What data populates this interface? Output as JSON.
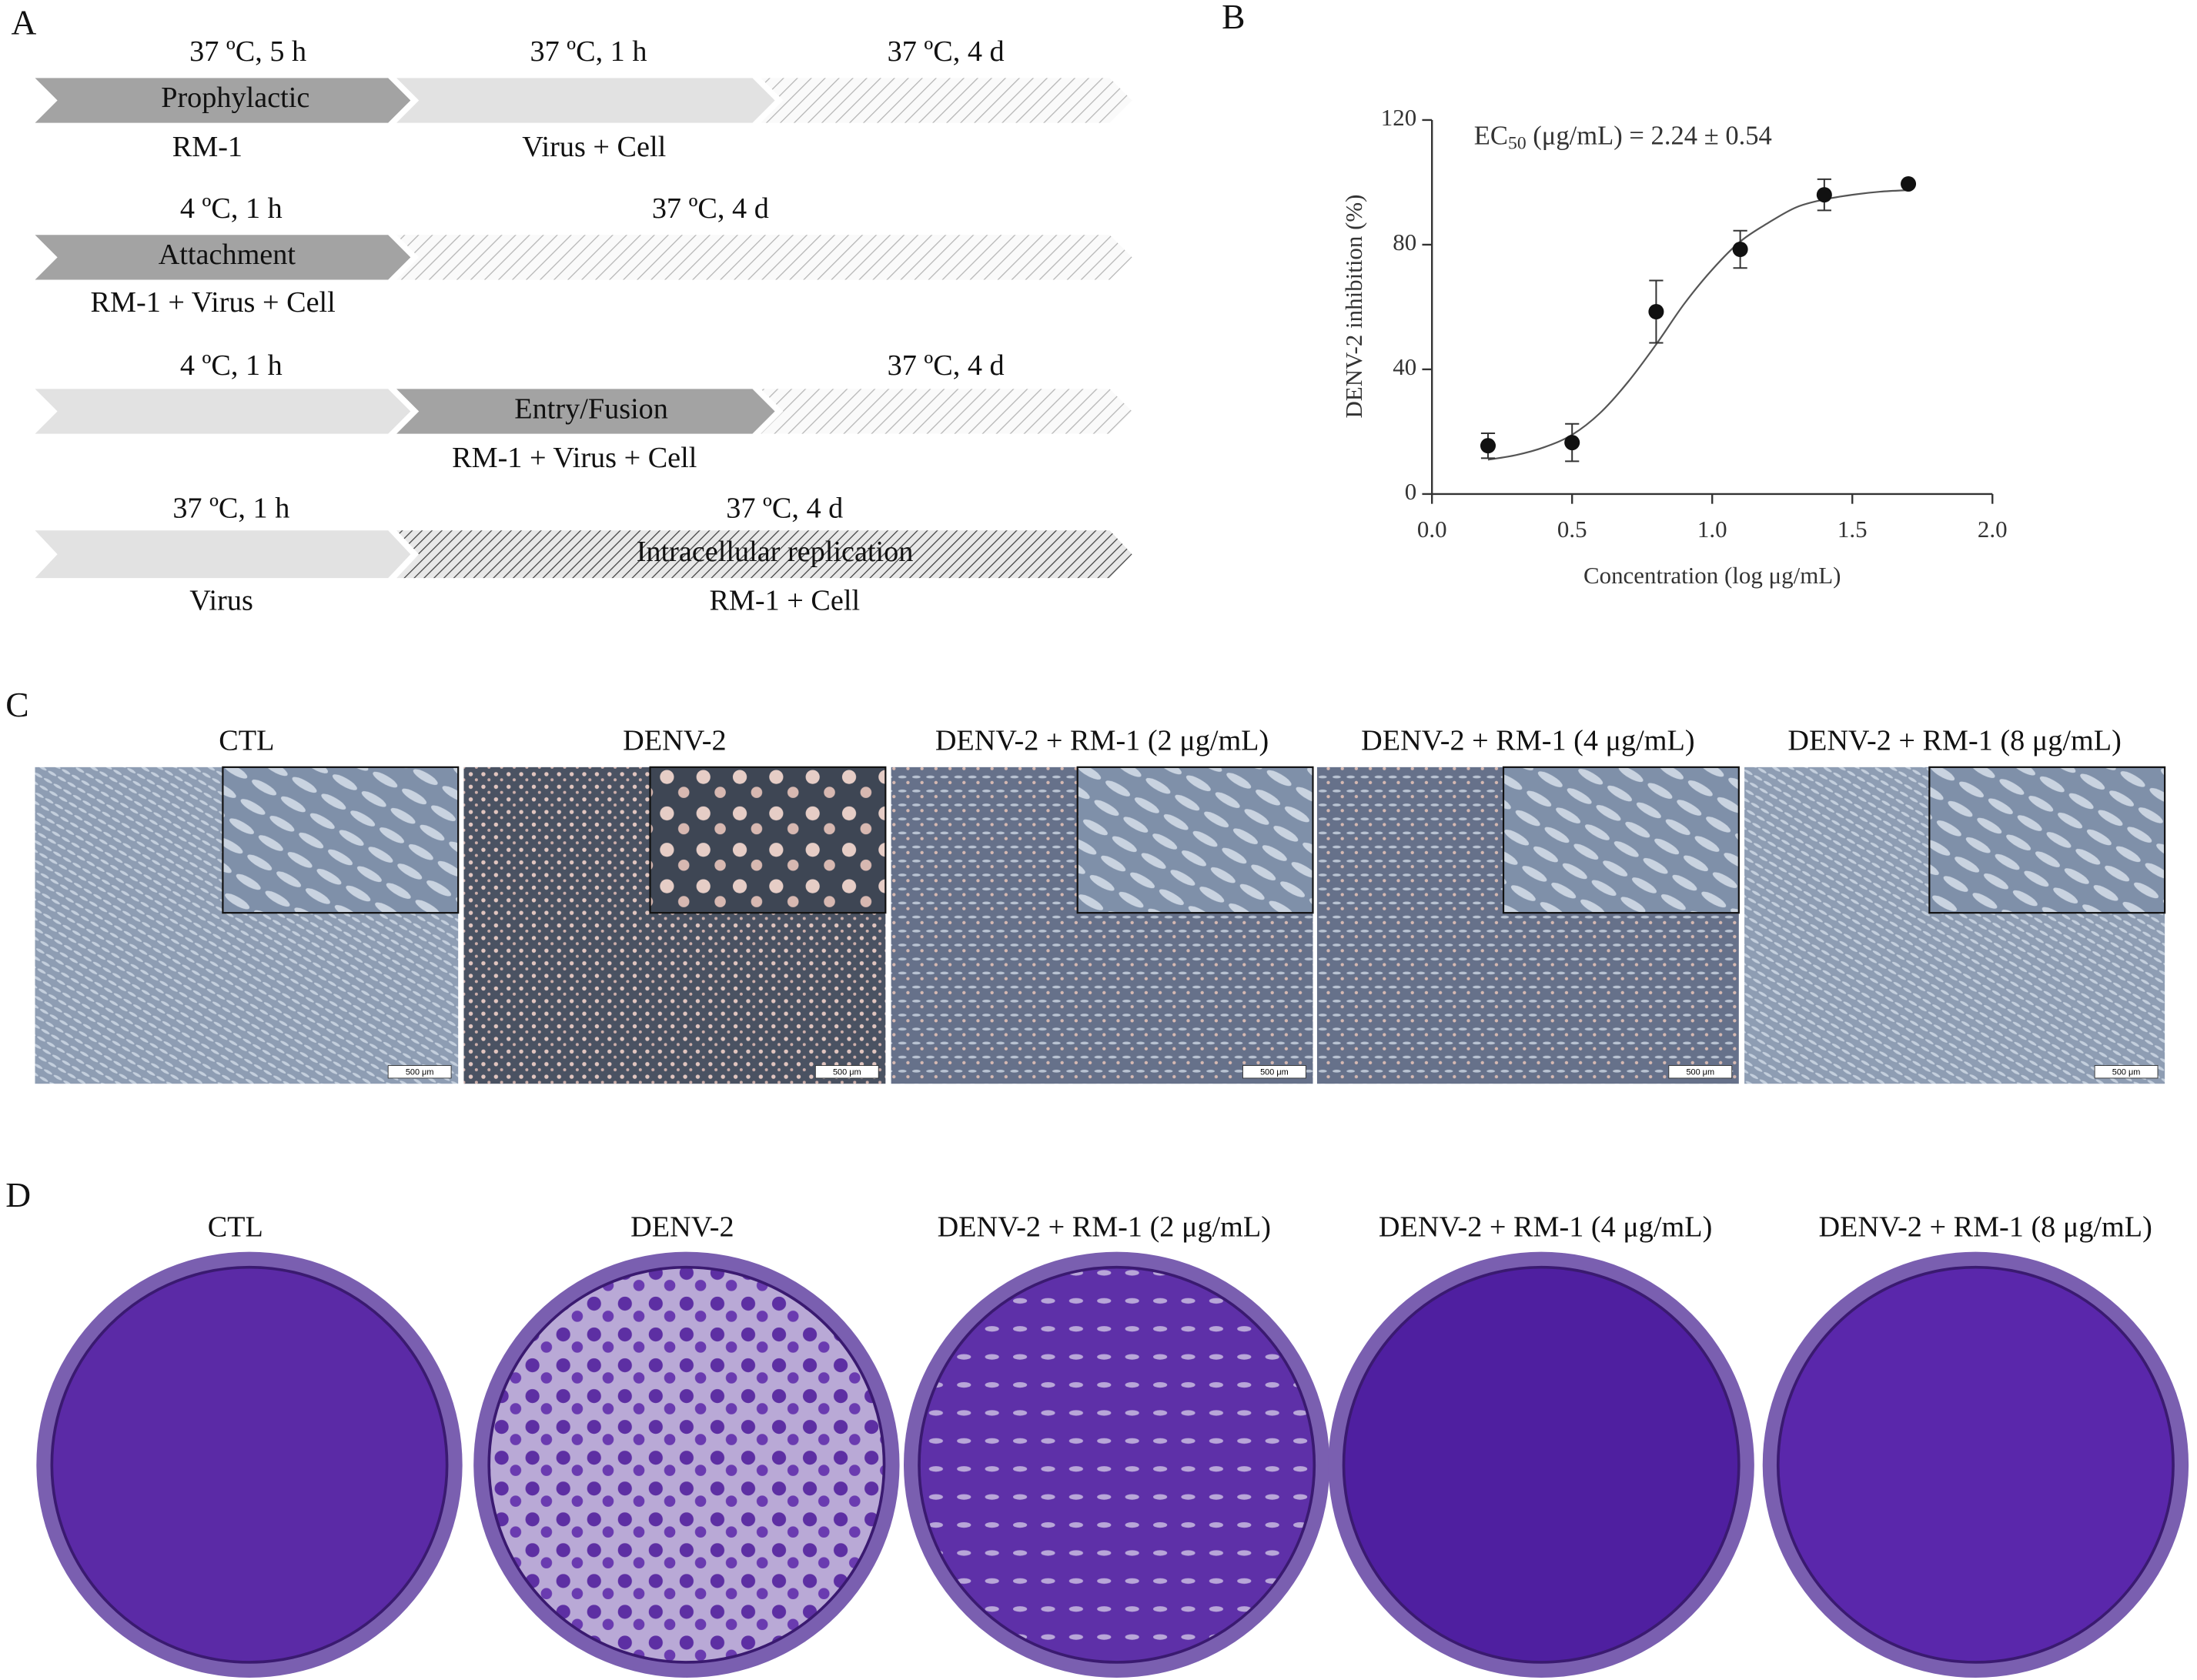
{
  "panel_labels": [
    "A",
    "B",
    "C",
    "D"
  ],
  "timeline": {
    "rows": [
      {
        "times": [
          "37 ºC, 5 h",
          "37 ºC, 1 h",
          "37 ºC, 4 d"
        ],
        "stages": [
          "Prophylactic"
        ],
        "agents": [
          "RM-1",
          "Virus + Cell"
        ]
      },
      {
        "times": [
          "4 ºC, 1 h",
          "37 ºC, 4 d"
        ],
        "stages": [
          "Attachment"
        ],
        "agents": [
          "RM-1 + Virus + Cell"
        ]
      },
      {
        "times": [
          "4 ºC, 1 h",
          "37 ºC, 4 d"
        ],
        "stages": [
          "Entry/Fusion"
        ],
        "agents": [
          "RM-1 + Virus + Cell"
        ]
      },
      {
        "times": [
          "37 ºC, 1 h",
          "37 ºC, 4 d"
        ],
        "stages": [
          "Intracellular replication"
        ],
        "agents": [
          "Virus",
          "RM-1 + Cell"
        ]
      }
    ]
  },
  "chart_data": {
    "type": "scatter",
    "annotation": {
      "text": "EC",
      "subscript": "50",
      "rest": " (μg/mL) = 2.24 ± 0.54"
    },
    "x_label": "Concentration (log μg/mL)",
    "y_label": "DENV-2 inhibition (%)",
    "x": [
      0.2,
      0.5,
      0.8,
      1.1,
      1.4,
      1.7
    ],
    "values": [
      15.5,
      16.5,
      58.5,
      78.5,
      96,
      99.5
    ],
    "errors": [
      4,
      6,
      10,
      6,
      5,
      0
    ],
    "color": "#111111",
    "fit": {
      "type": "line",
      "color": "#555555",
      "x": [
        0.2,
        0.3,
        0.4,
        0.5,
        0.6,
        0.7,
        0.8,
        0.9,
        1.0,
        1.1,
        1.2,
        1.3,
        1.4,
        1.5,
        1.6,
        1.7
      ],
      "values": [
        11,
        12.5,
        15,
        19,
        26,
        36,
        48,
        61,
        72,
        81,
        87,
        92,
        94.5,
        96,
        97,
        97.5
      ]
    },
    "xlim": [
      0,
      2
    ],
    "ylim": [
      0,
      120
    ],
    "xticks": [
      {
        "value": 0,
        "label": "0.0"
      },
      0.5,
      {
        "value": 1,
        "label": "1.0"
      },
      1.5,
      {
        "value": 2,
        "label": "2.0"
      }
    ],
    "yticks": [
      0,
      40,
      80,
      120
    ]
  },
  "micrographs": {
    "labels": [
      "CTL",
      "DENV-2",
      "DENV-2 + RM-1 (2 μg/mL)",
      "DENV-2 + RM-1 (4 μg/mL)",
      "DENV-2 + RM-1 (8 μg/mL)"
    ],
    "scale_bar": "500 μm"
  },
  "plates": {
    "labels": [
      "CTL",
      "DENV-2",
      "DENV-2 + RM-1 (2 μg/mL)",
      "DENV-2 + RM-1 (4 μg/mL)",
      "DENV-2 + RM-1 (8 μg/mL)"
    ]
  }
}
